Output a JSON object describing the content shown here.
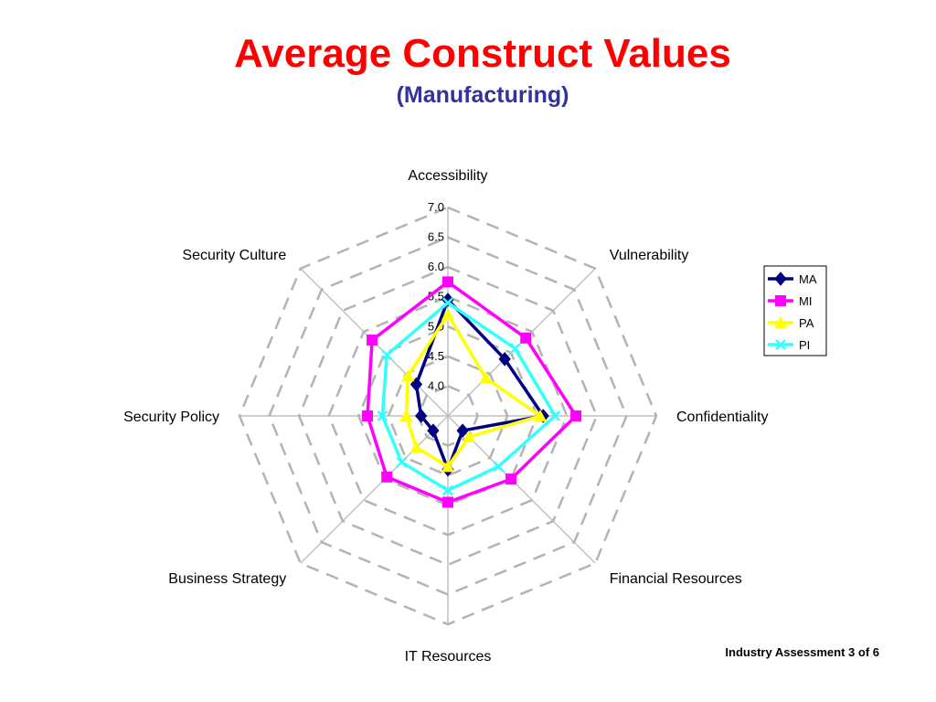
{
  "slide": {
    "title": "Average Construct Values",
    "subtitle": "(Manufacturing)",
    "footer": "Industry Assessment 3 of 6"
  },
  "chart_data": {
    "type": "radar",
    "title": "",
    "categories": [
      "Accessibility",
      "Vulnerability",
      "Confidentiality",
      "Financial Resources",
      "IT Resources",
      "Business Strategy",
      "Security Policy",
      "Security Culture"
    ],
    "rlim": [
      3.5,
      7.0
    ],
    "ticks": [
      "4.0",
      "4.5",
      "5.0",
      "5.5",
      "6.0",
      "6.5",
      "7.0"
    ],
    "tick_values": [
      4.0,
      4.5,
      5.0,
      5.5,
      6.0,
      6.5,
      7.0
    ],
    "grid": true,
    "legend_position": "right",
    "series": [
      {
        "name": "MA",
        "color": "#000080",
        "marker": "diamond",
        "values": [
          5.45,
          4.85,
          5.1,
          3.85,
          4.4,
          3.85,
          3.95,
          4.25
        ]
      },
      {
        "name": "MI",
        "color": "#ff00ff",
        "marker": "square",
        "values": [
          5.75,
          5.35,
          5.65,
          5.0,
          4.95,
          4.95,
          4.85,
          5.3
        ]
      },
      {
        "name": "PA",
        "color": "#ffff00",
        "marker": "triangle",
        "values": [
          5.2,
          4.4,
          5.05,
          4.0,
          4.35,
          4.25,
          4.2,
          4.45
        ]
      },
      {
        "name": "PI",
        "color": "#33ffff",
        "marker": "x",
        "values": [
          5.4,
          5.1,
          5.3,
          4.7,
          4.75,
          4.6,
          4.6,
          4.95
        ]
      }
    ]
  }
}
